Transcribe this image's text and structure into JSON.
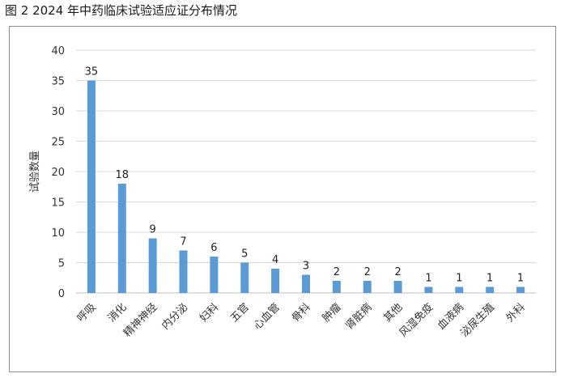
{
  "caption": "图 2   2024 年中药临床试验适应证分布情况",
  "chart_data": {
    "type": "bar",
    "title": "",
    "xlabel": "",
    "ylabel": "试验数量",
    "ylim": [
      0,
      40
    ],
    "yticks": [
      0,
      5,
      10,
      15,
      20,
      25,
      30,
      35,
      40
    ],
    "grid": true,
    "legend": "none",
    "bar_color": "#5b9bd5",
    "categories": [
      "呼吸",
      "消化",
      "精神神经",
      "内分泌",
      "妇科",
      "五官",
      "心血管",
      "骨科",
      "肿瘤",
      "肾脏病",
      "其他",
      "风湿免疫",
      "血液病",
      "泌尿生殖",
      "外科"
    ],
    "values": [
      35,
      18,
      9,
      7,
      6,
      5,
      4,
      3,
      2,
      2,
      2,
      1,
      1,
      1,
      1
    ]
  }
}
